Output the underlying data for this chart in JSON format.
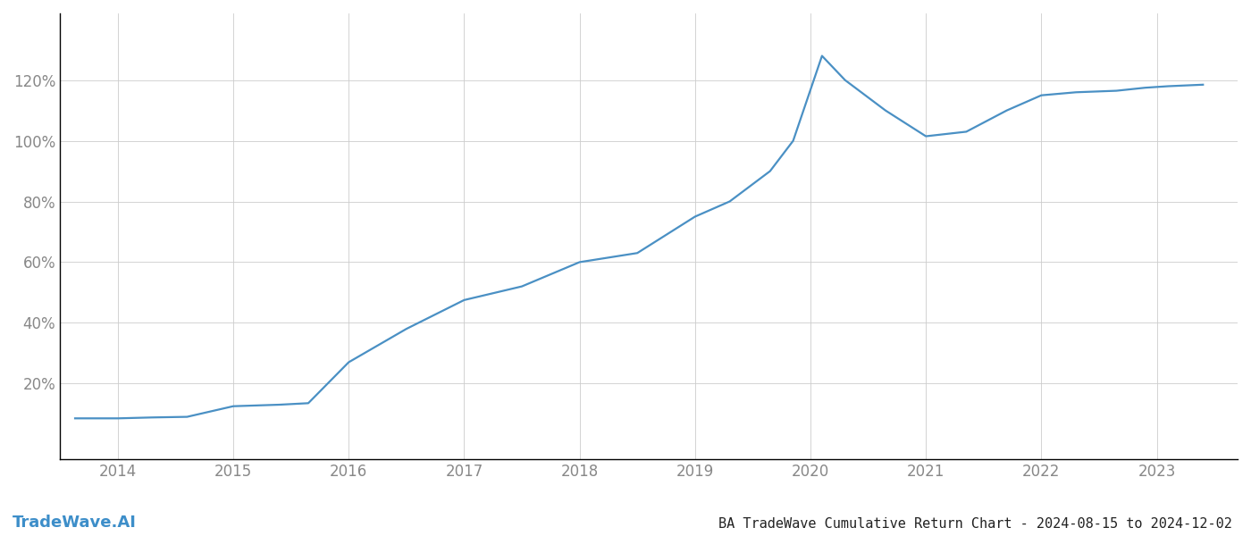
{
  "title": "BA TradeWave Cumulative Return Chart - 2024-08-15 to 2024-12-02",
  "watermark": "TradeWave.AI",
  "line_color": "#4a90c4",
  "background_color": "#ffffff",
  "grid_color": "#cccccc",
  "x_years": [
    2013.63,
    2014.0,
    2014.3,
    2014.6,
    2015.0,
    2015.4,
    2015.65,
    2016.0,
    2016.5,
    2017.0,
    2017.5,
    2018.0,
    2018.5,
    2019.0,
    2019.3,
    2019.65,
    2019.85,
    2020.1,
    2020.3,
    2020.65,
    2021.0,
    2021.35,
    2021.7,
    2022.0,
    2022.3,
    2022.65,
    2022.9,
    2023.1,
    2023.4
  ],
  "y_values": [
    8.5,
    8.5,
    8.8,
    9.0,
    12.5,
    13.0,
    13.5,
    27.0,
    38.0,
    47.5,
    52.0,
    60.0,
    63.0,
    75.0,
    80.0,
    90.0,
    100.0,
    128.0,
    120.0,
    110.0,
    101.5,
    103.0,
    110.0,
    115.0,
    116.0,
    116.5,
    117.5,
    118.0,
    118.5
  ],
  "yticks": [
    20,
    40,
    60,
    80,
    100,
    120
  ],
  "ylim": [
    -5,
    142
  ],
  "xlim": [
    2013.5,
    2023.7
  ],
  "xticks": [
    2014,
    2015,
    2016,
    2017,
    2018,
    2019,
    2020,
    2021,
    2022,
    2023
  ],
  "title_fontsize": 11,
  "tick_fontsize": 12,
  "watermark_fontsize": 13,
  "line_width": 1.6,
  "title_color": "#222222",
  "tick_color": "#888888",
  "spine_color": "#aaaaaa",
  "watermark_color": "#3d8ec9"
}
